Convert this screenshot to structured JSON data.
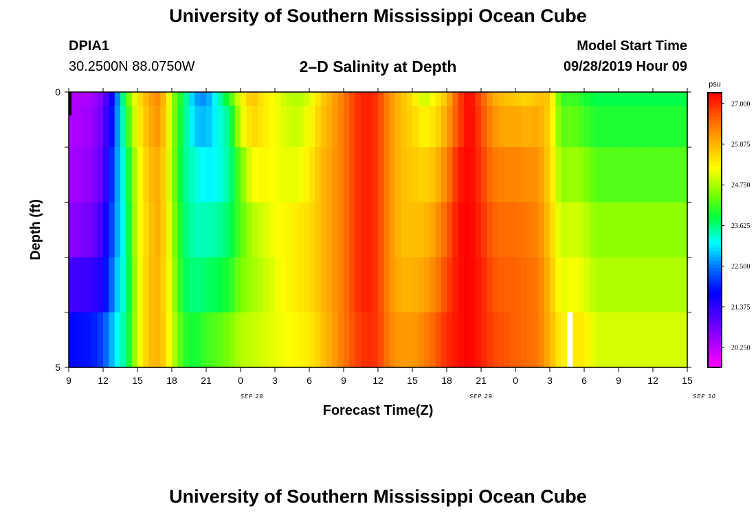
{
  "header": {
    "title": "University of Southern Mississippi Ocean Cube",
    "station_id": "DPIA1",
    "coordinates": "30.2500N 88.0750W",
    "plot_title": "2–D Salinity at Depth",
    "model_start_label": "Model Start Time",
    "model_start_value": "09/28/2019 Hour 09"
  },
  "footer": {
    "title": "University of Southern Mississippi Ocean Cube"
  },
  "chart_data": {
    "type": "heatmap",
    "title": "2–D Salinity at Depth",
    "xlabel": "Forecast Time(Z)",
    "ylabel": "Depth (ft)",
    "x_ticks": [
      "9",
      "12",
      "15",
      "18",
      "21",
      "0",
      "3",
      "6",
      "9",
      "12",
      "15",
      "18",
      "21",
      "0",
      "3",
      "6",
      "9",
      "12",
      "15"
    ],
    "date_labels": [
      {
        "label": "SEP 28",
        "at_hour": 16
      },
      {
        "label": "SEP 29",
        "at_hour": 36
      },
      {
        "label": "SEP 30",
        "at_hour": 55.5
      }
    ],
    "x_range_hours": [
      0,
      54
    ],
    "y_ticks": [
      "0",
      "5"
    ],
    "y_range_ft": [
      0,
      5
    ],
    "colorbar": {
      "unit": "psu",
      "min": 19.7,
      "max": 27.3,
      "ticks": [
        "27.000",
        "25.875",
        "24.750",
        "23.625",
        "22.500",
        "21.375",
        "20.250"
      ],
      "tick_values": [
        27.0,
        25.875,
        24.75,
        23.625,
        22.5,
        21.375,
        20.25
      ],
      "colors": [
        "#ff00ff",
        "#aa00ff",
        "#5000ff",
        "#0000ff",
        "#0070ff",
        "#00ffff",
        "#00ff40",
        "#80ff00",
        "#ffff00",
        "#ffb000",
        "#ff6000",
        "#ff0000"
      ]
    },
    "depth_bins_ft": [
      0,
      0.5,
      1.5,
      2.5,
      3.5,
      4.5
    ],
    "hourly_profile": [
      {
        "h": 0,
        "v": [
          20.3,
          20.3,
          20.4,
          20.6,
          21.2,
          21.8
        ]
      },
      {
        "h": 2,
        "v": [
          20.4,
          20.5,
          20.6,
          20.8,
          21.3,
          21.9
        ]
      },
      {
        "h": 3,
        "v": [
          20.8,
          20.9,
          21.0,
          21.3,
          21.6,
          22.2
        ]
      },
      {
        "h": 4,
        "v": [
          22.0,
          22.2,
          22.4,
          22.5,
          22.7,
          23.0
        ]
      },
      {
        "h": 5,
        "v": [
          24.2,
          23.9,
          23.6,
          23.5,
          23.5,
          23.6
        ]
      },
      {
        "h": 6,
        "v": [
          25.4,
          25.3,
          25.1,
          25.1,
          25.0,
          25.0
        ]
      },
      {
        "h": 7,
        "v": [
          26.0,
          25.9,
          25.8,
          25.7,
          25.8,
          25.8
        ]
      },
      {
        "h": 8,
        "v": [
          26.3,
          26.2,
          26.0,
          26.0,
          25.9,
          25.9
        ]
      },
      {
        "h": 9,
        "v": [
          24.7,
          24.7,
          24.7,
          24.8,
          24.9,
          25.0
        ]
      },
      {
        "h": 10,
        "v": [
          23.8,
          23.7,
          23.6,
          23.7,
          23.8,
          24.1
        ]
      },
      {
        "h": 11,
        "v": [
          22.7,
          22.9,
          23.3,
          23.4,
          23.6,
          23.9
        ]
      },
      {
        "h": 12,
        "v": [
          22.6,
          22.8,
          23.1,
          23.4,
          23.7,
          24.2
        ]
      },
      {
        "h": 13,
        "v": [
          23.3,
          23.2,
          23.2,
          23.5,
          23.8,
          24.3
        ]
      },
      {
        "h": 14,
        "v": [
          24.1,
          23.6,
          23.5,
          23.7,
          24.0,
          24.5
        ]
      },
      {
        "h": 15,
        "v": [
          25.2,
          25.0,
          24.4,
          24.3,
          24.5,
          24.8
        ]
      },
      {
        "h": 16,
        "v": [
          25.8,
          25.6,
          25.2,
          24.8,
          24.7,
          24.9
        ]
      },
      {
        "h": 17,
        "v": [
          25.4,
          25.4,
          25.3,
          25.0,
          24.9,
          25.0
        ]
      },
      {
        "h": 18,
        "v": [
          25.2,
          25.2,
          25.2,
          25.2,
          25.1,
          25.1
        ]
      },
      {
        "h": 19,
        "v": [
          24.9,
          25.0,
          25.1,
          25.3,
          25.3,
          25.2
        ]
      },
      {
        "h": 20,
        "v": [
          24.8,
          24.9,
          25.1,
          25.4,
          25.4,
          25.3
        ]
      },
      {
        "h": 21,
        "v": [
          25.0,
          25.2,
          25.4,
          25.5,
          25.5,
          25.4
        ]
      },
      {
        "h": 22,
        "v": [
          25.6,
          25.7,
          25.8,
          25.8,
          25.8,
          25.7
        ]
      },
      {
        "h": 24,
        "v": [
          26.4,
          26.4,
          26.4,
          26.4,
          26.4,
          26.4
        ]
      },
      {
        "h": 25,
        "v": [
          26.9,
          26.9,
          26.9,
          26.9,
          26.9,
          26.8
        ]
      },
      {
        "h": 26,
        "v": [
          27.1,
          27.1,
          27.1,
          27.1,
          27.1,
          27.0
        ]
      },
      {
        "h": 27,
        "v": [
          26.9,
          26.9,
          26.9,
          26.9,
          26.9,
          26.9
        ]
      },
      {
        "h": 28,
        "v": [
          26.2,
          26.2,
          26.2,
          26.2,
          26.2,
          26.3
        ]
      },
      {
        "h": 29,
        "v": [
          25.8,
          25.8,
          25.8,
          25.8,
          25.9,
          26.1
        ]
      },
      {
        "h": 30,
        "v": [
          25.5,
          25.6,
          25.7,
          25.8,
          25.9,
          26.1
        ]
      },
      {
        "h": 31,
        "v": [
          24.9,
          25.3,
          25.6,
          25.8,
          26.0,
          26.3
        ]
      },
      {
        "h": 32,
        "v": [
          25.3,
          25.5,
          25.8,
          26.1,
          26.3,
          26.6
        ]
      },
      {
        "h": 33,
        "v": [
          25.8,
          26.0,
          26.3,
          26.6,
          26.8,
          27.0
        ]
      },
      {
        "h": 34,
        "v": [
          26.8,
          26.8,
          27.1,
          27.2,
          27.2,
          27.2
        ]
      },
      {
        "h": 35,
        "v": [
          27.3,
          27.3,
          27.3,
          27.3,
          27.3,
          27.3
        ]
      },
      {
        "h": 36,
        "v": [
          26.7,
          26.8,
          26.9,
          27.0,
          27.1,
          27.1
        ]
      },
      {
        "h": 37,
        "v": [
          26.0,
          26.2,
          26.4,
          26.6,
          26.7,
          26.8
        ]
      },
      {
        "h": 38,
        "v": [
          25.8,
          26.0,
          26.3,
          26.5,
          26.6,
          26.7
        ]
      },
      {
        "h": 39,
        "v": [
          25.7,
          26.0,
          26.3,
          26.5,
          26.6,
          26.6
        ]
      },
      {
        "h": 40,
        "v": [
          25.6,
          25.9,
          26.2,
          26.4,
          26.5,
          26.5
        ]
      },
      {
        "h": 41,
        "v": [
          25.8,
          26.0,
          26.2,
          26.3,
          26.4,
          26.4
        ]
      },
      {
        "h": 42,
        "v": [
          25.7,
          25.6,
          25.6,
          25.7,
          25.8,
          25.9
        ]
      },
      {
        "h": 43,
        "v": [
          24.1,
          24.3,
          24.6,
          24.9,
          25.1,
          25.3
        ]
      },
      {
        "h": 44,
        "v": [
          24.2,
          24.4,
          24.7,
          25.0,
          25.2,
          25.4
        ]
      },
      {
        "h": 45,
        "v": [
          24.0,
          24.2,
          24.6,
          24.9,
          25.1,
          25.4
        ]
      },
      {
        "h": 46,
        "v": [
          23.8,
          24.0,
          24.3,
          24.6,
          24.8,
          25.0
        ]
      }
    ],
    "missing_cell": {
      "hour": 43.5,
      "depth_ft": 4.5
    }
  }
}
